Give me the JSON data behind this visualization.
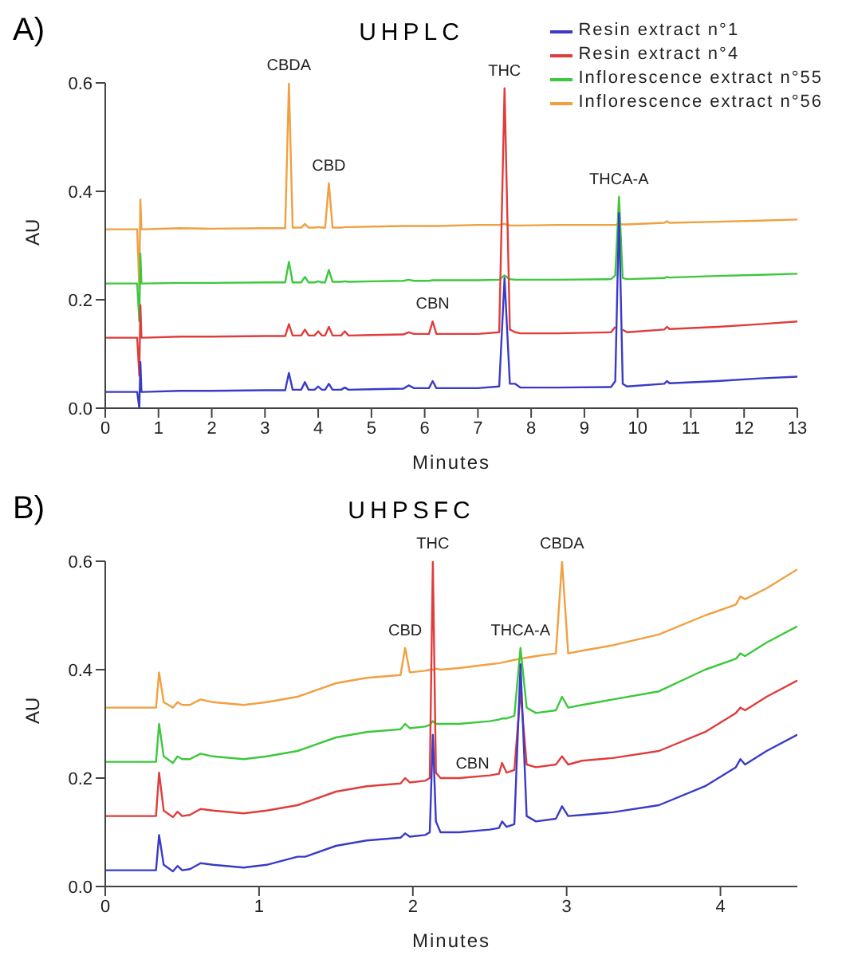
{
  "chart_data": [
    {
      "type": "line",
      "title": "UHPLC",
      "xlabel": "Minutes",
      "ylabel": "AU",
      "xlim": [
        0,
        13
      ],
      "ylim": [
        0,
        0.6
      ],
      "xticks": [
        0,
        1,
        2,
        3,
        4,
        5,
        6,
        7,
        8,
        9,
        10,
        11,
        12,
        13
      ],
      "yticks": [
        {
          "value": 0,
          "label": "0.0"
        },
        0.2,
        0.4,
        0.6
      ],
      "legend": "top right",
      "annotations": [
        "A)",
        {
          "text": "CBDA",
          "x": 3.45,
          "y": 0.6
        },
        {
          "text": "CBD",
          "x": 4.2,
          "y": 0.415
        },
        {
          "text": "THC",
          "x": 7.5,
          "y": 0.59
        },
        {
          "text": "THCA-A",
          "x": 9.65,
          "y": 0.39
        },
        {
          "text": "CBN",
          "x": 6.15,
          "y": 0.16
        }
      ],
      "series": [
        {
          "name": "Resin extract n°1",
          "color": "#3a3ac8",
          "x": [
            0,
            0.6,
            0.64,
            0.66,
            0.68,
            0.72,
            1.4,
            2.0,
            3.0,
            3.38,
            3.45,
            3.52,
            3.68,
            3.75,
            3.82,
            3.93,
            4.0,
            4.07,
            4.13,
            4.2,
            4.27,
            4.43,
            4.5,
            4.57,
            5.0,
            5.6,
            5.7,
            5.8,
            6.08,
            6.15,
            6.22,
            7.0,
            7.4,
            7.5,
            7.6,
            7.7,
            7.8,
            8.5,
            9.5,
            9.58,
            9.65,
            9.72,
            9.8,
            10.5,
            10.55,
            10.6,
            11.5,
            12.3,
            13
          ],
          "values": [
            0.03,
            0.03,
            0.0,
            0.085,
            0.03,
            0.03,
            0.032,
            0.032,
            0.033,
            0.033,
            0.065,
            0.034,
            0.034,
            0.048,
            0.034,
            0.034,
            0.04,
            0.034,
            0.034,
            0.045,
            0.034,
            0.034,
            0.038,
            0.034,
            0.035,
            0.036,
            0.042,
            0.037,
            0.037,
            0.05,
            0.037,
            0.037,
            0.04,
            0.24,
            0.045,
            0.045,
            0.038,
            0.038,
            0.039,
            0.05,
            0.36,
            0.045,
            0.04,
            0.045,
            0.05,
            0.046,
            0.05,
            0.055,
            0.058
          ]
        },
        {
          "name": "Resin extract n°4",
          "color": "#e03c3c",
          "x": [
            0,
            0.6,
            0.64,
            0.66,
            0.68,
            0.72,
            1.4,
            2.0,
            3.0,
            3.38,
            3.45,
            3.52,
            3.68,
            3.75,
            3.82,
            3.93,
            4.0,
            4.07,
            4.13,
            4.2,
            4.27,
            4.43,
            4.5,
            4.57,
            5.0,
            5.6,
            5.7,
            5.8,
            6.08,
            6.15,
            6.22,
            7.0,
            7.4,
            7.5,
            7.6,
            7.7,
            7.8,
            8.5,
            9.5,
            9.58,
            9.65,
            9.72,
            9.8,
            10.5,
            10.55,
            10.6,
            11.5,
            12.3,
            13
          ],
          "values": [
            0.13,
            0.13,
            0.06,
            0.19,
            0.13,
            0.13,
            0.132,
            0.132,
            0.133,
            0.133,
            0.155,
            0.134,
            0.134,
            0.145,
            0.134,
            0.134,
            0.142,
            0.134,
            0.134,
            0.15,
            0.134,
            0.134,
            0.142,
            0.134,
            0.135,
            0.136,
            0.14,
            0.137,
            0.137,
            0.16,
            0.137,
            0.137,
            0.14,
            0.59,
            0.145,
            0.14,
            0.138,
            0.138,
            0.14,
            0.15,
            null,
            0.145,
            0.14,
            0.145,
            0.15,
            0.146,
            0.15,
            0.155,
            0.16
          ]
        },
        {
          "name": "Inflorescence extract n°55",
          "color": "#3cc83c",
          "x": [
            0,
            0.6,
            0.64,
            0.66,
            0.68,
            0.72,
            1.4,
            2.0,
            3.0,
            3.38,
            3.45,
            3.52,
            3.68,
            3.75,
            3.82,
            3.93,
            4.0,
            4.07,
            4.13,
            4.2,
            4.27,
            4.43,
            4.5,
            4.57,
            5.0,
            5.6,
            5.7,
            5.8,
            6.08,
            6.15,
            6.22,
            7.0,
            7.4,
            7.5,
            7.6,
            7.7,
            7.8,
            8.5,
            9.5,
            9.58,
            9.65,
            9.72,
            9.8,
            10.5,
            10.55,
            10.6,
            11.5,
            12.3,
            13
          ],
          "values": [
            0.23,
            0.23,
            0.16,
            0.285,
            0.23,
            0.23,
            0.231,
            0.231,
            0.232,
            0.232,
            0.27,
            0.232,
            0.232,
            0.242,
            0.232,
            0.232,
            0.234,
            0.232,
            0.232,
            0.255,
            0.233,
            0.233,
            0.234,
            0.233,
            0.234,
            0.235,
            0.237,
            0.235,
            0.235,
            0.236,
            0.236,
            0.236,
            0.237,
            0.245,
            0.238,
            0.237,
            0.237,
            0.237,
            0.238,
            0.245,
            0.39,
            0.24,
            0.238,
            0.24,
            0.242,
            0.241,
            0.244,
            0.246,
            0.248
          ]
        },
        {
          "name": "Inflorescence extract n°56",
          "color": "#f0a040",
          "x": [
            0,
            0.6,
            0.64,
            0.66,
            0.68,
            0.72,
            1.4,
            2.0,
            3.0,
            3.38,
            3.45,
            3.52,
            3.68,
            3.75,
            3.82,
            3.93,
            4.0,
            4.07,
            4.13,
            4.2,
            4.27,
            4.43,
            4.5,
            4.57,
            5.0,
            5.6,
            5.7,
            5.8,
            6.08,
            6.15,
            6.22,
            7.0,
            7.4,
            7.5,
            7.6,
            7.7,
            7.8,
            8.5,
            9.5,
            9.58,
            9.65,
            9.72,
            9.8,
            10.5,
            10.55,
            10.6,
            11.5,
            12.3,
            13
          ],
          "values": [
            0.33,
            0.33,
            0.22,
            0.385,
            0.33,
            0.33,
            0.332,
            0.331,
            0.332,
            0.332,
            0.6,
            0.333,
            0.333,
            0.34,
            0.333,
            0.333,
            0.334,
            0.333,
            0.333,
            0.415,
            0.333,
            0.333,
            0.334,
            0.334,
            0.335,
            0.336,
            0.336,
            0.336,
            0.336,
            0.336,
            0.336,
            0.338,
            0.338,
            0.34,
            0.337,
            0.337,
            0.337,
            0.338,
            0.338,
            0.338,
            0.34,
            0.339,
            0.339,
            0.342,
            0.345,
            0.342,
            0.344,
            0.346,
            0.348
          ]
        }
      ]
    },
    {
      "type": "line",
      "title": "UHPSFC",
      "xlabel": "Minutes",
      "ylabel": "AU",
      "xlim": [
        0,
        4.5
      ],
      "ylim": [
        0,
        0.6
      ],
      "xticks": [
        0,
        1,
        2,
        3,
        4
      ],
      "yticks": [
        {
          "value": 0,
          "label": "0.0"
        },
        0.2,
        0.4,
        0.6
      ],
      "legend": false,
      "annotations": [
        "B)",
        {
          "text": "CBD",
          "x": 1.95,
          "y": 0.44
        },
        {
          "text": "THC",
          "x": 2.13,
          "y": 0.6
        },
        {
          "text": "THCA-A",
          "x": 2.7,
          "y": 0.44
        },
        {
          "text": "CBDA",
          "x": 2.97,
          "y": 0.6
        },
        {
          "text": "CBN",
          "x": 2.58,
          "y": 0.228
        }
      ],
      "series": [
        {
          "color": "#3a3ac8",
          "x": [
            0,
            0.3,
            0.33,
            0.35,
            0.38,
            0.44,
            0.47,
            0.5,
            0.55,
            0.62,
            0.7,
            0.9,
            1.05,
            1.25,
            1.3,
            1.5,
            1.7,
            1.92,
            1.95,
            1.98,
            2.08,
            2.11,
            2.13,
            2.15,
            2.18,
            2.3,
            2.5,
            2.56,
            2.58,
            2.61,
            2.66,
            2.7,
            2.74,
            2.8,
            2.93,
            2.97,
            3.01,
            3.1,
            3.3,
            3.6,
            3.9,
            4.1,
            4.13,
            4.16,
            4.3,
            4.5
          ],
          "values": [
            0.03,
            0.03,
            0.03,
            0.095,
            0.04,
            0.028,
            0.038,
            0.03,
            0.032,
            0.043,
            0.04,
            0.035,
            0.04,
            0.055,
            0.055,
            0.075,
            0.085,
            0.09,
            0.098,
            0.092,
            0.095,
            0.1,
            0.28,
            0.12,
            0.1,
            0.1,
            0.105,
            0.108,
            0.12,
            0.11,
            0.115,
            0.41,
            0.13,
            0.12,
            0.125,
            0.148,
            0.13,
            0.132,
            0.137,
            0.15,
            0.185,
            0.22,
            0.235,
            0.225,
            0.25,
            0.28
          ]
        },
        {
          "color": "#e03c3c",
          "x": [
            0,
            0.3,
            0.33,
            0.35,
            0.38,
            0.44,
            0.47,
            0.5,
            0.55,
            0.62,
            0.7,
            0.9,
            1.05,
            1.25,
            1.3,
            1.5,
            1.7,
            1.92,
            1.95,
            1.98,
            2.08,
            2.11,
            2.13,
            2.15,
            2.18,
            2.3,
            2.5,
            2.56,
            2.58,
            2.61,
            2.66,
            2.7,
            2.74,
            2.8,
            2.93,
            2.97,
            3.01,
            3.1,
            3.3,
            3.6,
            3.9,
            4.1,
            4.13,
            4.16,
            4.3,
            4.5
          ],
          "values": [
            0.13,
            0.13,
            0.13,
            0.21,
            0.14,
            0.128,
            0.138,
            0.13,
            0.132,
            0.143,
            0.14,
            0.135,
            0.14,
            0.15,
            0.155,
            0.175,
            0.185,
            0.19,
            0.2,
            0.192,
            0.195,
            0.2,
            0.6,
            0.21,
            0.2,
            0.2,
            0.205,
            0.208,
            0.228,
            0.21,
            0.215,
            0.36,
            0.225,
            0.22,
            0.225,
            0.24,
            0.225,
            0.232,
            0.237,
            0.25,
            0.285,
            0.32,
            0.33,
            0.325,
            0.35,
            0.38
          ]
        },
        {
          "color": "#3cc83c",
          "x": [
            0,
            0.3,
            0.33,
            0.35,
            0.38,
            0.44,
            0.47,
            0.5,
            0.55,
            0.62,
            0.7,
            0.9,
            1.05,
            1.25,
            1.3,
            1.5,
            1.7,
            1.92,
            1.95,
            1.98,
            2.08,
            2.11,
            2.13,
            2.15,
            2.18,
            2.3,
            2.5,
            2.56,
            2.58,
            2.61,
            2.66,
            2.7,
            2.74,
            2.8,
            2.93,
            2.97,
            3.01,
            3.1,
            3.3,
            3.6,
            3.9,
            4.1,
            4.13,
            4.16,
            4.3,
            4.5
          ],
          "values": [
            0.23,
            0.23,
            0.23,
            0.3,
            0.24,
            0.228,
            0.24,
            0.235,
            0.235,
            0.245,
            0.24,
            0.235,
            0.24,
            0.25,
            0.255,
            0.275,
            0.285,
            0.29,
            0.3,
            0.292,
            0.295,
            0.298,
            0.305,
            0.3,
            0.3,
            0.3,
            0.305,
            0.308,
            0.31,
            0.31,
            0.315,
            0.44,
            0.33,
            0.32,
            0.325,
            0.35,
            0.33,
            0.335,
            0.345,
            0.36,
            0.4,
            0.42,
            0.43,
            0.425,
            0.45,
            0.48
          ]
        },
        {
          "color": "#f0a040",
          "x": [
            0,
            0.3,
            0.33,
            0.35,
            0.38,
            0.44,
            0.47,
            0.5,
            0.55,
            0.62,
            0.7,
            0.9,
            1.05,
            1.25,
            1.3,
            1.5,
            1.7,
            1.92,
            1.95,
            1.98,
            2.08,
            2.11,
            2.13,
            2.15,
            2.18,
            2.3,
            2.5,
            2.56,
            2.58,
            2.61,
            2.66,
            2.7,
            2.74,
            2.8,
            2.93,
            2.97,
            3.01,
            3.1,
            3.3,
            3.6,
            3.9,
            4.1,
            4.13,
            4.16,
            4.3,
            4.5
          ],
          "values": [
            0.33,
            0.33,
            0.33,
            0.395,
            0.34,
            0.33,
            0.34,
            0.335,
            0.335,
            0.345,
            0.34,
            0.335,
            0.34,
            0.35,
            0.355,
            0.375,
            0.385,
            0.39,
            0.44,
            0.395,
            0.398,
            0.4,
            0.4,
            0.402,
            0.4,
            0.403,
            0.41,
            0.412,
            0.413,
            0.415,
            0.418,
            0.42,
            0.422,
            0.425,
            0.43,
            0.6,
            0.43,
            0.435,
            0.445,
            0.465,
            0.5,
            0.52,
            0.535,
            0.53,
            0.55,
            0.585
          ]
        }
      ]
    }
  ]
}
